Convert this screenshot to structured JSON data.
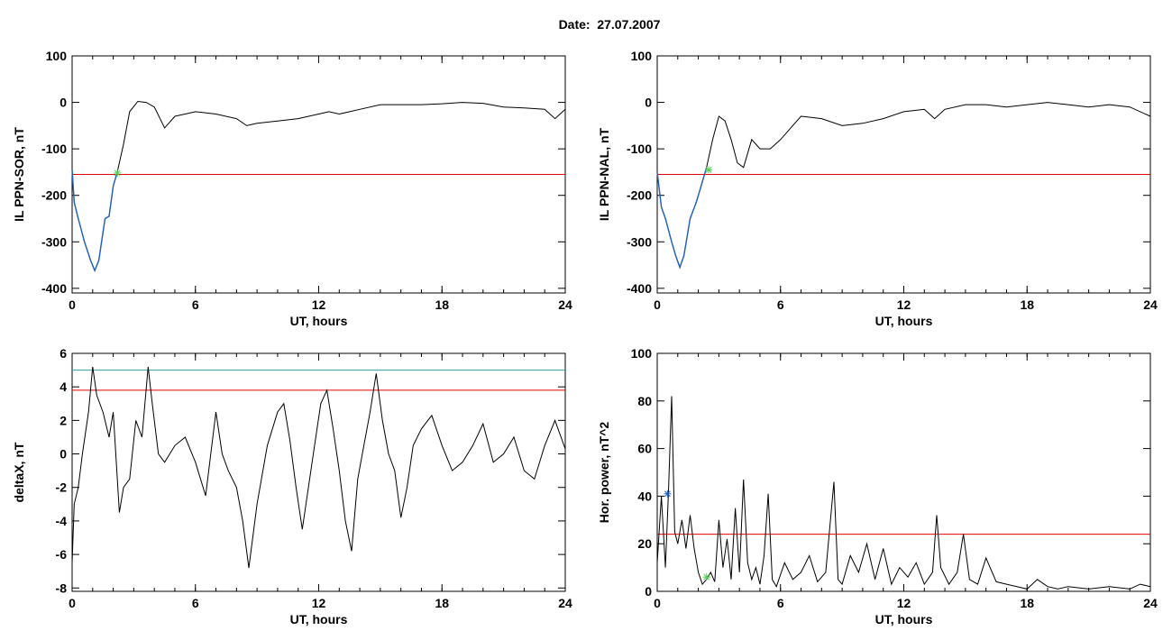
{
  "page": {
    "title": "Date:  27.07.2007"
  },
  "colors": {
    "curve": "#000000",
    "highlight": "#1f5fbf",
    "threshold": "#e00000",
    "threshold2": "#2e9e9e",
    "marker": "#4fd24f"
  },
  "chart_data": [
    {
      "type": "line",
      "title": "",
      "xlabel": "UT, hours",
      "ylabel": "IL PPN-SOR, nT",
      "xlim": [
        0,
        24
      ],
      "ylim": [
        -410,
        100
      ],
      "xticks": [
        "0",
        "6",
        "12",
        "18",
        "24"
      ],
      "yticks": [
        "100",
        "0",
        "-100",
        "-200",
        "-300",
        "-400"
      ],
      "grid": false,
      "series": [
        {
          "x": [
            0,
            0.1,
            0.3,
            0.6,
            0.9,
            1.1,
            1.3,
            1.6,
            1.8,
            2.0,
            2.2,
            2.5,
            2.8,
            3.2,
            3.6,
            4.0,
            4.5,
            5.0,
            5.5,
            6,
            7,
            8,
            8.5,
            9,
            10,
            11,
            12,
            12.5,
            13,
            14,
            15,
            16,
            17,
            18,
            19,
            20,
            21,
            22,
            23,
            23.5,
            24
          ],
          "y": [
            -145,
            -215,
            -250,
            -300,
            -340,
            -362,
            -340,
            -250,
            -245,
            -180,
            -150,
            -90,
            -20,
            2,
            0,
            -10,
            -55,
            -30,
            -25,
            -20,
            -25,
            -35,
            -50,
            -45,
            -40,
            -35,
            -25,
            -20,
            -25,
            -15,
            -5,
            -5,
            -5,
            -3,
            0,
            -2,
            -10,
            -12,
            -15,
            -35,
            -15
          ]
        },
        {
          "name": "",
          "x": [
            0,
            0.1,
            0.3,
            0.6,
            0.9,
            1.1,
            1.3,
            1.6,
            1.8,
            2.0,
            2.2
          ],
          "y": [
            -145,
            -215,
            -250,
            -300,
            -340,
            -362,
            -340,
            -250,
            -245,
            -180,
            -150
          ]
        }
      ],
      "hlines": [
        -155
      ],
      "markers": [
        {
          "x": 2.2,
          "y": -152
        }
      ]
    },
    {
      "type": "line",
      "title": "",
      "xlabel": "UT, hours",
      "ylabel": "IL PPN-NAL, nT",
      "xlim": [
        0,
        24
      ],
      "ylim": [
        -410,
        100
      ],
      "xticks": [
        "0",
        "6",
        "12",
        "18",
        "24"
      ],
      "yticks": [
        "100",
        "0",
        "-100",
        "-200",
        "-300",
        "-400"
      ],
      "grid": false,
      "series": [
        {
          "x": [
            0,
            0.2,
            0.4,
            0.7,
            0.9,
            1.1,
            1.3,
            1.6,
            1.9,
            2.1,
            2.4,
            2.7,
            3.0,
            3.3,
            3.6,
            3.9,
            4.2,
            4.6,
            5.0,
            5.5,
            6,
            6.5,
            7,
            8,
            9,
            10,
            11,
            12,
            13,
            13.5,
            14,
            15,
            16,
            17,
            18,
            19,
            20,
            21,
            22,
            23,
            24
          ],
          "y": [
            -150,
            -225,
            -250,
            -300,
            -330,
            -355,
            -330,
            -250,
            -215,
            -185,
            -140,
            -80,
            -30,
            -40,
            -80,
            -130,
            -140,
            -80,
            -100,
            -100,
            -80,
            -55,
            -30,
            -35,
            -50,
            -45,
            -35,
            -20,
            -15,
            -35,
            -15,
            -5,
            -5,
            -10,
            -5,
            0,
            -5,
            -10,
            -5,
            -10,
            -30
          ]
        },
        {
          "name": "",
          "x": [
            0,
            0.2,
            0.4,
            0.7,
            0.9,
            1.1,
            1.3,
            1.6,
            1.9,
            2.1,
            2.4
          ],
          "y": [
            -150,
            -225,
            -250,
            -300,
            -330,
            -355,
            -330,
            -250,
            -215,
            -185,
            -140
          ]
        }
      ],
      "hlines": [
        -155
      ],
      "markers": [
        {
          "x": 2.5,
          "y": -145
        }
      ]
    },
    {
      "type": "line",
      "title": "",
      "xlabel": "UT, hours",
      "ylabel": "deltaX, nT",
      "xlim": [
        0,
        24
      ],
      "ylim": [
        -8.2,
        6
      ],
      "xticks": [
        "0",
        "6",
        "12",
        "18",
        "24"
      ],
      "yticks": [
        "6",
        "4",
        "2",
        "0",
        "-2",
        "-4",
        "-6",
        "-8"
      ],
      "grid": false,
      "series": [
        {
          "x": [
            0,
            0.1,
            0.3,
            0.5,
            0.8,
            1.0,
            1.2,
            1.5,
            1.8,
            2.0,
            2.3,
            2.5,
            2.8,
            3.1,
            3.4,
            3.7,
            3.9,
            4.2,
            4.5,
            5.0,
            5.5,
            6.0,
            6.5,
            7.0,
            7.3,
            7.6,
            8.0,
            8.3,
            8.6,
            9.0,
            9.5,
            10.0,
            10.3,
            10.6,
            10.9,
            11.2,
            11.5,
            11.8,
            12.1,
            12.4,
            12.7,
            13.0,
            13.3,
            13.6,
            13.9,
            14.2,
            14.5,
            14.8,
            15.1,
            15.4,
            15.7,
            16.0,
            16.3,
            16.6,
            17.0,
            17.5,
            18.0,
            18.5,
            19.0,
            19.5,
            20.0,
            20.5,
            21.0,
            21.5,
            22.0,
            22.5,
            23.0,
            23.5,
            24.0
          ],
          "y": [
            -6.5,
            -3,
            -2,
            0,
            2.5,
            5.2,
            3.5,
            2.5,
            1,
            2.5,
            -3.5,
            -2,
            -1.5,
            2,
            1,
            5.2,
            3,
            0,
            -0.5,
            0.5,
            1,
            -0.5,
            -2.5,
            2.5,
            0,
            -1,
            -2,
            -4,
            -6.8,
            -3,
            0.5,
            2.5,
            3,
            0.8,
            -2,
            -4.5,
            -2,
            0.5,
            3,
            3.8,
            1.5,
            -1,
            -4,
            -5.8,
            -1.5,
            0.5,
            2.5,
            4.8,
            2,
            0,
            -1,
            -3.8,
            -2,
            0.5,
            1.5,
            2.3,
            0.5,
            -1,
            -0.5,
            0.5,
            1.8,
            -0.5,
            0,
            1,
            -1,
            -1.5,
            0.5,
            2,
            0.3
          ]
        }
      ],
      "hlines": [
        5.0,
        3.8
      ]
    },
    {
      "type": "line",
      "title": "",
      "xlabel": "UT, hours",
      "ylabel": "Hor. power, nT^2",
      "xlim": [
        0,
        24
      ],
      "ylim": [
        0,
        100
      ],
      "xticks": [
        "0",
        "6",
        "12",
        "18",
        "24"
      ],
      "yticks": [
        "100",
        "80",
        "60",
        "40",
        "20",
        "0"
      ],
      "grid": false,
      "series": [
        {
          "x": [
            0,
            0.2,
            0.4,
            0.55,
            0.7,
            0.85,
            1.0,
            1.2,
            1.4,
            1.6,
            1.8,
            2.0,
            2.2,
            2.4,
            2.6,
            2.8,
            3.0,
            3.2,
            3.4,
            3.6,
            3.8,
            4.0,
            4.2,
            4.4,
            4.6,
            4.8,
            5.0,
            5.2,
            5.4,
            5.6,
            5.8,
            6.2,
            6.6,
            7.0,
            7.4,
            7.8,
            8.2,
            8.6,
            8.8,
            9.0,
            9.4,
            9.8,
            10.2,
            10.6,
            11.0,
            11.4,
            11.8,
            12.2,
            12.6,
            13.0,
            13.4,
            13.6,
            13.8,
            14.2,
            14.6,
            14.9,
            15.2,
            15.6,
            16.0,
            16.2,
            16.5,
            17.0,
            17.5,
            18.0,
            18.5,
            19.0,
            19.5,
            20.0,
            21.0,
            22.0,
            23.0,
            23.5,
            24.0
          ],
          "y": [
            12,
            40,
            10,
            42,
            82,
            25,
            20,
            30,
            18,
            32,
            18,
            8,
            3,
            5,
            8,
            4,
            30,
            10,
            22,
            5,
            35,
            8,
            47,
            12,
            5,
            10,
            3,
            15,
            41,
            5,
            2,
            12,
            5,
            8,
            15,
            4,
            8,
            46,
            5,
            3,
            15,
            8,
            20,
            5,
            18,
            3,
            10,
            6,
            12,
            3,
            8,
            32,
            10,
            3,
            8,
            24,
            5,
            3,
            14,
            10,
            4,
            3,
            2,
            1,
            5,
            2,
            1,
            2,
            1,
            2,
            1,
            3,
            2
          ]
        }
      ],
      "hlines": [
        24
      ],
      "markers": [
        {
          "x": 0.5,
          "y": 41,
          "color": "highlight"
        },
        {
          "x": 2.4,
          "y": 6
        }
      ]
    }
  ]
}
